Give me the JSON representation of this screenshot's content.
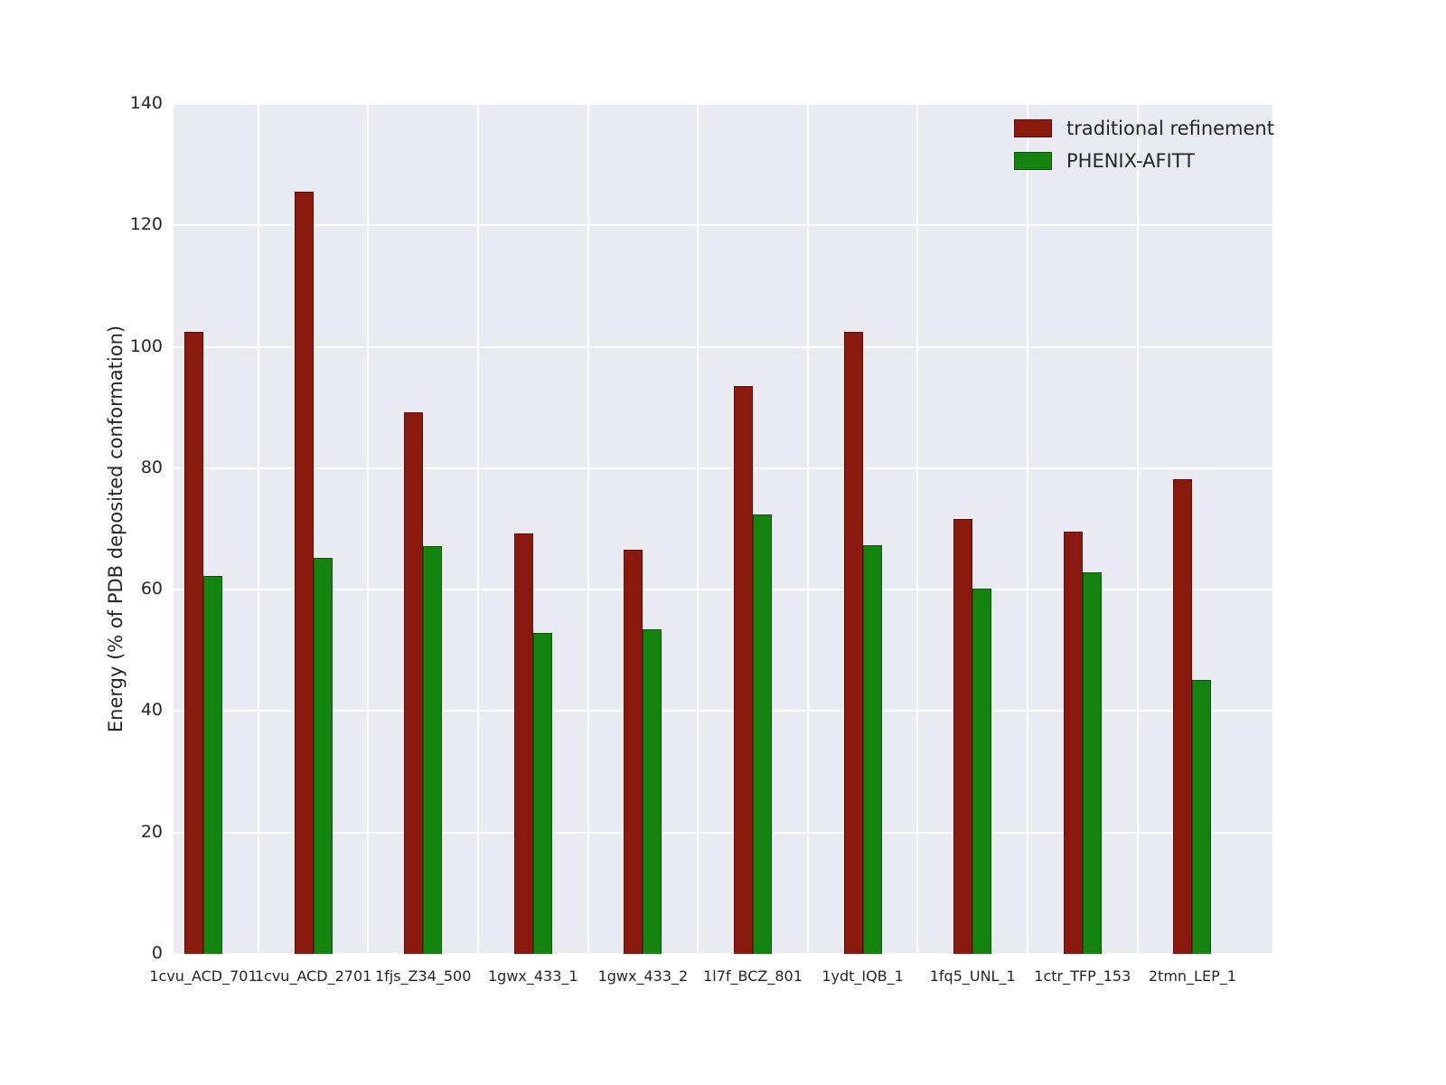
{
  "chart_data": {
    "type": "bar",
    "title": "",
    "xlabel": "",
    "ylabel": "Energy (% of PDB deposited conformation)",
    "ylim": [
      0,
      140
    ],
    "yticks": [
      0,
      20,
      40,
      60,
      80,
      100,
      120,
      140
    ],
    "grid": true,
    "legend_position": "upper right",
    "background_color": "#eaeaf2",
    "gridline_color": "#ffffff",
    "categories": [
      "1cvu_ACD_701",
      "1cvu_ACD_2701",
      "1fjs_Z34_500",
      "1gwx_433_1",
      "1gwx_433_2",
      "1l7f_BCZ_801",
      "1ydt_IQB_1",
      "1fq5_UNL_1",
      "1ctr_TFP_153",
      "2tmn_LEP_1"
    ],
    "series": [
      {
        "name": "traditional refinement",
        "color": "#8b1a0e",
        "values": [
          102.5,
          125.5,
          89.2,
          69.2,
          66.6,
          93.5,
          102.4,
          71.6,
          69.6,
          78.2
        ]
      },
      {
        "name": "PHENIX-AFITT",
        "color": "#15830f",
        "values": [
          62.2,
          65.2,
          67.1,
          52.9,
          53.5,
          72.4,
          67.3,
          60.2,
          62.9,
          45.2
        ]
      }
    ]
  }
}
